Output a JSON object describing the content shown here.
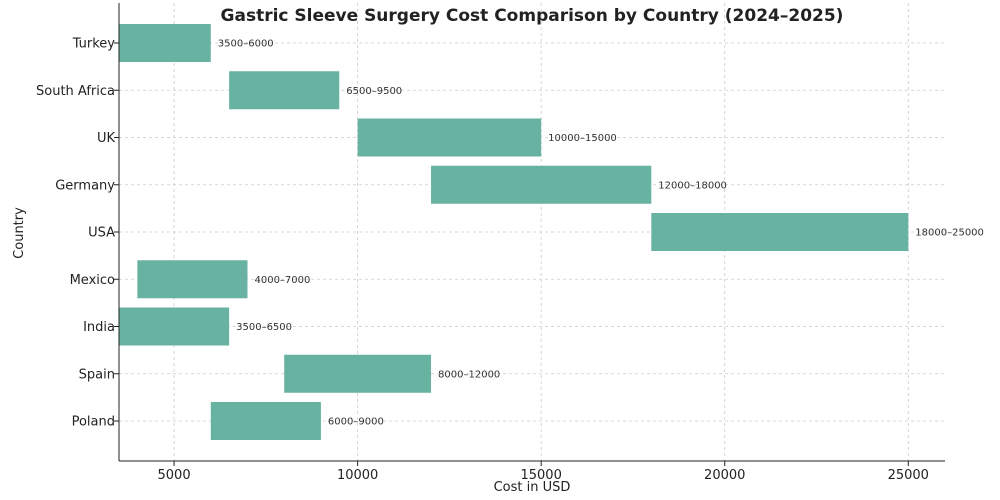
{
  "chart_data": {
    "type": "bar",
    "orientation": "horizontal-range",
    "title": "Gastric Sleeve Surgery Cost Comparison by Country (2024–2025)",
    "xlabel": "Cost in USD",
    "ylabel": "Country",
    "xlim": [
      3500,
      26000
    ],
    "xticks": [
      5000,
      10000,
      15000,
      20000,
      25000
    ],
    "grid": true,
    "bar_color": "#67b2a0",
    "bars": [
      {
        "category": "Turkey",
        "low": 3500,
        "high": 6000,
        "label": "3500–6000"
      },
      {
        "category": "South Africa",
        "low": 6500,
        "high": 9500,
        "label": "6500–9500"
      },
      {
        "category": "UK",
        "low": 10000,
        "high": 15000,
        "label": "10000–15000"
      },
      {
        "category": "Germany",
        "low": 12000,
        "high": 18000,
        "label": "12000–18000"
      },
      {
        "category": "USA",
        "low": 18000,
        "high": 25000,
        "label": "18000–25000"
      },
      {
        "category": "Mexico",
        "low": 4000,
        "high": 7000,
        "label": "4000–7000"
      },
      {
        "category": "India",
        "low": 3500,
        "high": 6500,
        "label": "3500–6500"
      },
      {
        "category": "Spain",
        "low": 8000,
        "high": 12000,
        "label": "8000–12000"
      },
      {
        "category": "Poland",
        "low": 6000,
        "high": 9000,
        "label": "6000–9000"
      }
    ]
  }
}
